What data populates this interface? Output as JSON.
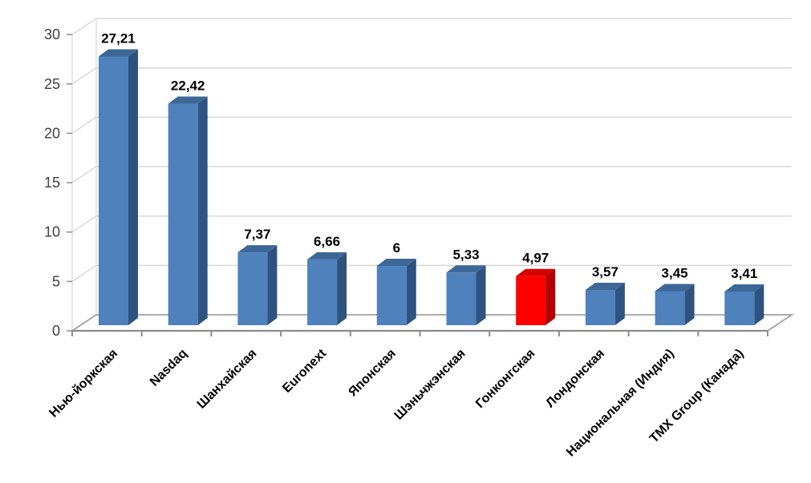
{
  "chart_data": {
    "type": "bar",
    "style": "3d-column",
    "title": "",
    "xlabel": "",
    "ylabel": "",
    "categories": [
      "Нью-йоркская",
      "Nasdaq",
      "Шанхайская",
      "Euronext",
      "Японская",
      "Шэньчжэнская",
      "Гонконгская",
      "Лондонская",
      "Национальная (Индия)",
      "TMX Group (Канада)"
    ],
    "values": [
      27.21,
      22.42,
      7.37,
      6.66,
      6,
      5.33,
      4.97,
      3.57,
      3.45,
      3.41
    ],
    "value_labels": [
      "27,21",
      "22,42",
      "7,37",
      "6,66",
      "6",
      "5,33",
      "4,97",
      "3,57",
      "3,45",
      "3,41"
    ],
    "highlighted_index": 6,
    "y_ticks": [
      0,
      5,
      10,
      15,
      20,
      25,
      30
    ],
    "ylim": [
      0,
      30
    ],
    "grid": true,
    "legend": false,
    "colors": {
      "bar_front": "#4F81BD",
      "bar_top": "#3D6796",
      "bar_side": "#2E5380",
      "highlight_front": "#FE0000",
      "highlight_top": "#D40000",
      "highlight_side": "#B30000",
      "gridline": "#D9D9D9",
      "axis_line": "#8C8C8C",
      "floor_line": "#A0A0A0",
      "tick_label": "#3F3F3F",
      "value_label": "#000000",
      "category_label": "#000000",
      "background": "#FFFFFF"
    }
  }
}
